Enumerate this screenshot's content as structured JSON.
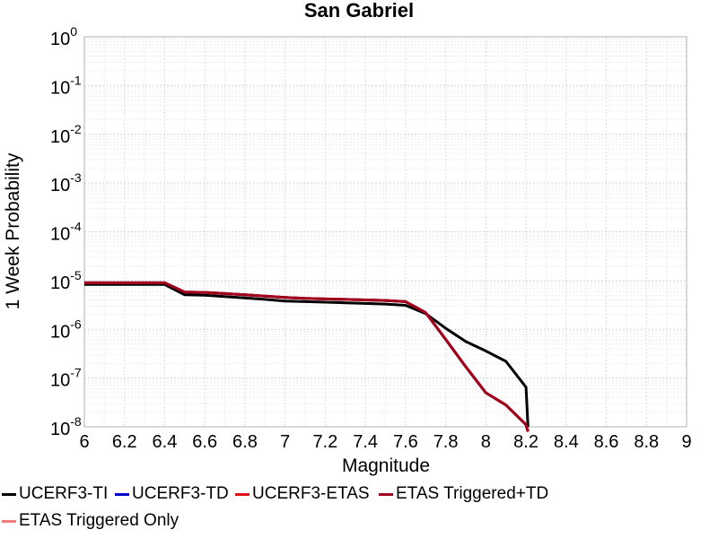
{
  "chart_data": {
    "type": "line",
    "title": "San Gabriel",
    "xlabel": "Magnitude",
    "ylabel": "1 Week Probability",
    "xlim": [
      6,
      9
    ],
    "ylim": [
      1e-08,
      1
    ],
    "y_scale": "log",
    "grid": true,
    "legend_position": "bottom",
    "x_ticks": [
      "6",
      "6.2",
      "6.4",
      "6.6",
      "6.8",
      "7",
      "7.2",
      "7.4",
      "7.6",
      "7.8",
      "8",
      "8.2",
      "8.4",
      "8.6",
      "8.8",
      "9"
    ],
    "y_ticks": [
      {
        "base": "10",
        "exp": "0"
      },
      {
        "base": "10",
        "exp": "-1"
      },
      {
        "base": "10",
        "exp": "-2"
      },
      {
        "base": "10",
        "exp": "-3"
      },
      {
        "base": "10",
        "exp": "-4"
      },
      {
        "base": "10",
        "exp": "-5"
      },
      {
        "base": "10",
        "exp": "-6"
      },
      {
        "base": "10",
        "exp": "-7"
      },
      {
        "base": "10",
        "exp": "-8"
      }
    ],
    "series": [
      {
        "name": "UCERF3-TI",
        "color": "#000000",
        "x": [
          6.0,
          6.1,
          6.2,
          6.3,
          6.4,
          6.5,
          6.6,
          6.7,
          6.8,
          6.9,
          7.0,
          7.1,
          7.2,
          7.3,
          7.4,
          7.5,
          7.6,
          7.7,
          7.8,
          7.9,
          8.0,
          8.1,
          8.2,
          8.21
        ],
        "y": [
          8.3e-06,
          8.3e-06,
          8.3e-06,
          8.3e-06,
          8.3e-06,
          5.1e-06,
          5e-06,
          4.7e-06,
          4.4e-06,
          4.1e-06,
          3.8e-06,
          3.7e-06,
          3.6e-06,
          3.5e-06,
          3.4e-06,
          3.3e-06,
          3.1e-06,
          2.1e-06,
          1.05e-06,
          5.6e-07,
          3.6e-07,
          2.2e-07,
          6.5e-08,
          1e-08
        ]
      },
      {
        "name": "UCERF3-TD",
        "color": "#0000cc",
        "x": [
          6.0,
          6.1,
          6.2,
          6.3,
          6.4,
          6.5,
          6.6,
          6.7,
          6.8,
          6.9,
          7.0,
          7.1,
          7.2,
          7.3,
          7.4,
          7.5,
          7.6,
          7.7,
          7.8,
          7.9,
          8.0,
          8.1,
          8.2,
          8.21
        ],
        "y": [
          9e-06,
          9e-06,
          9e-06,
          9e-06,
          9e-06,
          5.8e-06,
          5.7e-06,
          5.4e-06,
          5.1e-06,
          4.8e-06,
          4.5e-06,
          4.3e-06,
          4.2e-06,
          4.1e-06,
          4e-06,
          3.9e-06,
          3.7e-06,
          2.2e-06,
          6.2e-07,
          1.7e-07,
          5e-08,
          2.8e-08,
          1.1e-08,
          7e-09
        ]
      },
      {
        "name": "UCERF3-ETAS",
        "color": "#e01010",
        "x": [
          6.0,
          6.1,
          6.2,
          6.3,
          6.4,
          6.5,
          6.6,
          6.7,
          6.8,
          6.9,
          7.0,
          7.1,
          7.2,
          7.3,
          7.4,
          7.5,
          7.6,
          7.7,
          7.8,
          7.9,
          8.0,
          8.1,
          8.2,
          8.21
        ],
        "y": [
          9e-06,
          9e-06,
          9e-06,
          9e-06,
          9e-06,
          5.8e-06,
          5.7e-06,
          5.4e-06,
          5.1e-06,
          4.8e-06,
          4.5e-06,
          4.3e-06,
          4.2e-06,
          4.1e-06,
          4e-06,
          3.9e-06,
          3.7e-06,
          2.2e-06,
          6.2e-07,
          1.7e-07,
          5e-08,
          2.8e-08,
          1.1e-08,
          7e-09
        ]
      },
      {
        "name": "ETAS Triggered+TD",
        "color": "#a0001a",
        "x": [
          6.0,
          6.1,
          6.2,
          6.3,
          6.4,
          6.5,
          6.6,
          6.7,
          6.8,
          6.9,
          7.0,
          7.1,
          7.2,
          7.3,
          7.4,
          7.5,
          7.6,
          7.7,
          7.8,
          7.9,
          8.0,
          8.1,
          8.2,
          8.21
        ],
        "y": [
          9e-06,
          9e-06,
          9e-06,
          9e-06,
          9e-06,
          5.8e-06,
          5.7e-06,
          5.4e-06,
          5.1e-06,
          4.8e-06,
          4.5e-06,
          4.3e-06,
          4.2e-06,
          4.1e-06,
          4e-06,
          3.9e-06,
          3.7e-06,
          2.2e-06,
          6.2e-07,
          1.7e-07,
          5e-08,
          2.8e-08,
          1.1e-08,
          7e-09
        ]
      },
      {
        "name": "ETAS Triggered Only",
        "color": "#f08080",
        "x": [],
        "y": []
      }
    ]
  }
}
